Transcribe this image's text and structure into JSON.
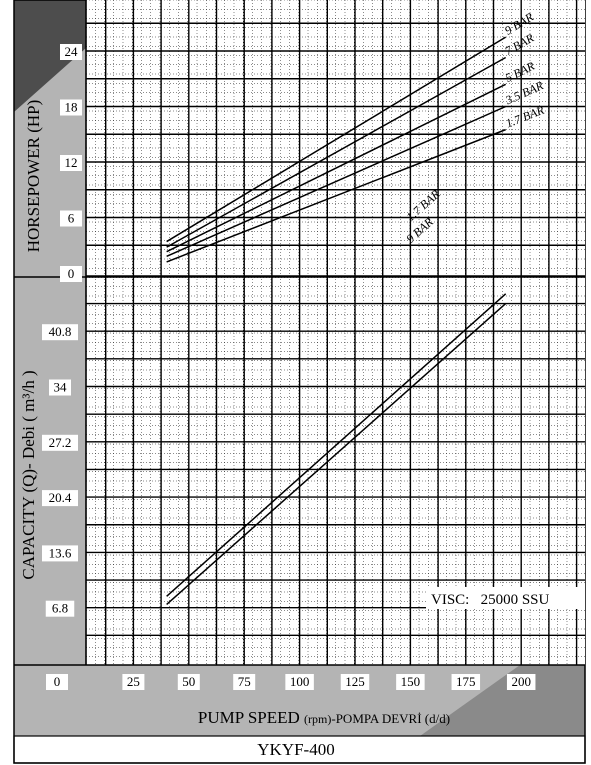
{
  "chart_data": [
    {
      "type": "line",
      "ylabel": "HORSEPOWER  (HP)",
      "y_ticks": [
        "0",
        "6",
        "12",
        "18",
        "24"
      ],
      "ylim": [
        0,
        28
      ],
      "series": [
        {
          "name": "9 BAR",
          "label": "9 BAR",
          "x": [
            40,
            193
          ],
          "values": [
            3.4,
            25.5
          ]
        },
        {
          "name": "7 BAR",
          "label": "7 BAR",
          "x": [
            40,
            193
          ],
          "values": [
            2.8,
            23.3
          ]
        },
        {
          "name": "5 BAR",
          "label": "5 BAR",
          "x": [
            40,
            193
          ],
          "values": [
            2.3,
            20.4
          ]
        },
        {
          "name": "3.5 BAR",
          "label": "3.5 BAR",
          "x": [
            40,
            193
          ],
          "values": [
            1.8,
            18.0
          ]
        },
        {
          "name": "1.7 BAR",
          "label": "1.7 BAR",
          "x": [
            40,
            193
          ],
          "values": [
            1.2,
            15.5
          ]
        }
      ]
    },
    {
      "type": "line",
      "ylabel": "CAPACITY (Q)- Debi ( m³/h )",
      "y_ticks": [
        "6.8",
        "13.6",
        "20.4",
        "27.2",
        "34",
        "40.8"
      ],
      "ylim": [
        0,
        47.6
      ],
      "series": [
        {
          "name": "1.7 BAR",
          "label": "1.7 BAR",
          "x": [
            40,
            193
          ],
          "values": [
            8.2,
            45.4
          ]
        },
        {
          "name": "9 BAR",
          "label": "9 BAR",
          "x": [
            40,
            193
          ],
          "values": [
            7.2,
            44.2
          ]
        }
      ],
      "annotation": "VISC:   25000 SSU"
    }
  ],
  "x_axis": {
    "label_main": "PUMP SPEED ",
    "label_unit": "(rpm)",
    "label_rest": "-POMPA DEVRİ (d/d)",
    "ticks": [
      "0",
      "25",
      "50",
      "75",
      "100",
      "125",
      "150",
      "175",
      "200"
    ],
    "xlim": [
      0,
      225
    ]
  },
  "footer_title": "YKYF-400",
  "colors": {
    "grid": "#000000",
    "panel": "#b4b4b4",
    "dark_panel": "#4d4d4d"
  }
}
